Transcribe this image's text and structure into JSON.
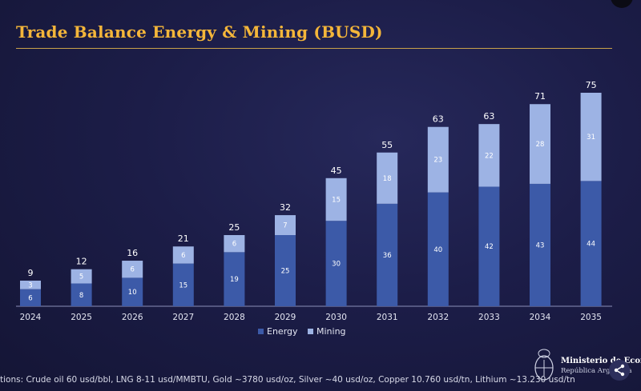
{
  "title": "Trade Balance Energy & Mining (BUSD)",
  "footnote": "tions: Crude oil 60 usd/bbl, LNG 8-11 usd/MMBTU, Gold ~3780 usd/oz, Silver ~40 usd/oz, Copper 10.760 usd/tn, Lithium ~13.230 usd/tn",
  "ministry": {
    "name": "Ministerio de Economía",
    "sub": "República Argentina"
  },
  "colors": {
    "energy": "#3c5aa8",
    "mining": "#9db3e4",
    "title": "#f4b63a"
  },
  "chart_data": {
    "type": "bar",
    "stacked": true,
    "title": "Trade Balance Energy & Mining (BUSD)",
    "xlabel": "",
    "ylabel": "",
    "ylim": [
      0,
      75
    ],
    "categories": [
      "2024",
      "2025",
      "2026",
      "2027",
      "2028",
      "2029",
      "2030",
      "2031",
      "2032",
      "2033",
      "2034",
      "2035"
    ],
    "series": [
      {
        "name": "Energy",
        "values": [
          6,
          8,
          10,
          15,
          19,
          25,
          30,
          36,
          40,
          42,
          43,
          44
        ]
      },
      {
        "name": "Mining",
        "values": [
          3,
          5,
          6,
          6,
          6,
          7,
          15,
          18,
          23,
          22,
          28,
          31
        ]
      }
    ],
    "totals": [
      9,
      12,
      16,
      21,
      25,
      32,
      45,
      55,
      63,
      63,
      71,
      75
    ],
    "legend": [
      "Energy",
      "Mining"
    ],
    "legend_position": "bottom",
    "grid": false
  }
}
